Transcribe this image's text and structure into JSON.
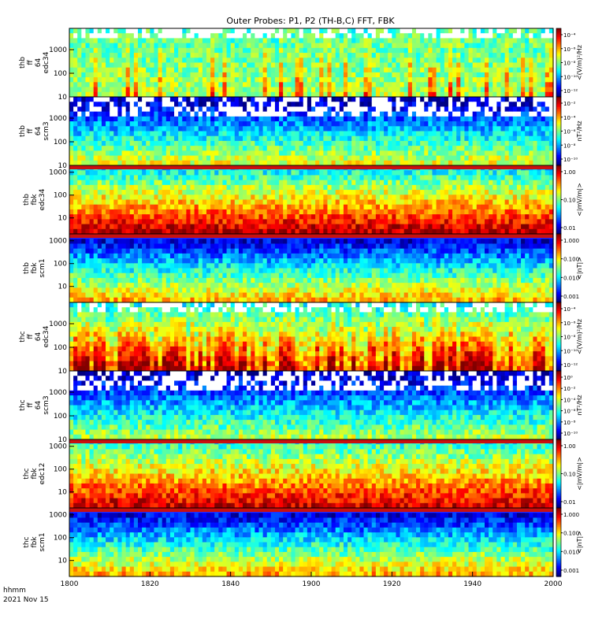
{
  "title": "Outer Probes: P1, P2 (TH-B,C) FFT, FBK",
  "footer": {
    "line1": "hhmm",
    "line2": "2021 Nov 15"
  },
  "chart_data": {
    "type": "heatmap",
    "x_ticks": [
      "1800",
      "1820",
      "1840",
      "1900",
      "1920",
      "1940",
      "2000"
    ],
    "x_range_hhmm": [
      "1800",
      "2000"
    ],
    "panels": [
      {
        "id": "thb-ff-efc34",
        "ylabel": [
          "thb",
          "ff",
          "64",
          "edc34"
        ],
        "y_ticks": [
          "10",
          "100",
          "1000"
        ],
        "log_y": true,
        "y_range": [
          10,
          8000
        ],
        "zunit": "<(V/m)²/Hz",
        "colorbar_ticks": [
          "10⁻⁴",
          "10⁻⁶",
          "10⁻⁸",
          "10⁻¹⁰",
          "10⁻¹²"
        ]
      },
      {
        "id": "thb-ff-scm3",
        "ylabel": [
          "thb",
          "ff",
          "64",
          "scm3"
        ],
        "y_ticks": [
          "10",
          "100",
          "1000"
        ],
        "log_y": true,
        "y_range": [
          10,
          8000
        ],
        "zunit": "nT²/Hz",
        "colorbar_ticks": [
          "10⁻²",
          "10⁻⁴",
          "10⁻⁶",
          "10⁻⁸",
          "10⁻¹⁰"
        ]
      },
      {
        "id": "thb-fbk-edc34",
        "ylabel": [
          "thb",
          "fbk",
          "edc34"
        ],
        "y_ticks": [
          "10",
          "100",
          "1000"
        ],
        "log_y": true,
        "y_range": [
          2,
          2000
        ],
        "zunit": "<|mV/m|>",
        "colorbar_ticks": [
          "1.00",
          "0.10",
          "0.01"
        ]
      },
      {
        "id": "thb-fbk-scm1",
        "ylabel": [
          "thb",
          "fbk",
          "scm1"
        ],
        "y_ticks": [
          "10",
          "100",
          "1000"
        ],
        "log_y": true,
        "y_range": [
          2,
          2000
        ],
        "zunit": "<|nT|>",
        "colorbar_ticks": [
          "1.000",
          "0.100",
          "0.010",
          "0.001"
        ]
      },
      {
        "id": "thc-ff-edc34",
        "ylabel": [
          "thc",
          "ff",
          "64",
          "edc34"
        ],
        "y_ticks": [
          "10",
          "100",
          "1000"
        ],
        "log_y": true,
        "y_range": [
          10,
          8000
        ],
        "zunit": "<(V/m)²/Hz",
        "colorbar_ticks": [
          "10⁻⁴",
          "10⁻⁶",
          "10⁻⁸",
          "10⁻¹⁰",
          "10⁻¹²"
        ]
      },
      {
        "id": "thc-ff-scm3",
        "ylabel": [
          "thc",
          "ff",
          "64",
          "scm3"
        ],
        "y_ticks": [
          "10",
          "100",
          "1000"
        ],
        "log_y": true,
        "y_range": [
          10,
          8000
        ],
        "zunit": "nT²/Hz",
        "colorbar_ticks": [
          "10⁰",
          "10⁻²",
          "10⁻⁴",
          "10⁻⁶",
          "10⁻⁸",
          "10⁻¹⁰"
        ]
      },
      {
        "id": "thc-fbk-edc12",
        "ylabel": [
          "thc",
          "fbk",
          "edc12"
        ],
        "y_ticks": [
          "10",
          "100",
          "1000"
        ],
        "log_y": true,
        "y_range": [
          2,
          2000
        ],
        "zunit": "<|mV/m|>",
        "colorbar_ticks": [
          "1.00",
          "0.10",
          "0.01"
        ]
      },
      {
        "id": "thc-fbk-scm1",
        "ylabel": [
          "thc",
          "fbk",
          "scm1"
        ],
        "y_ticks": [
          "10",
          "100",
          "1000"
        ],
        "log_y": true,
        "y_range": [
          2,
          2000
        ],
        "zunit": "<|nT|>",
        "colorbar_ticks": [
          "1.000",
          "0.100",
          "0.010",
          "0.001"
        ]
      }
    ]
  }
}
